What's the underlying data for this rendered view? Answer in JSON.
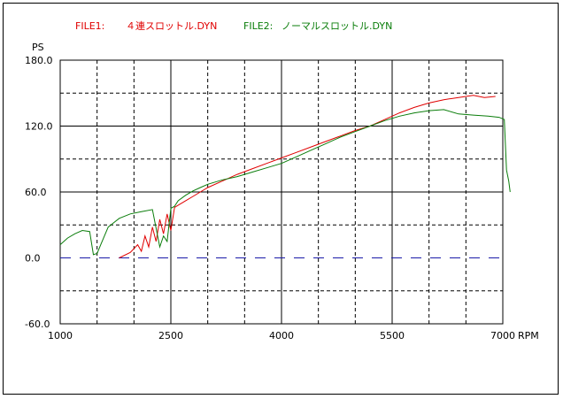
{
  "legend": {
    "file1_label": "FILE1:",
    "file1_name": "４連スロットル.DYN",
    "file2_label": "FILE2:",
    "file2_name": "ノーマルスロットル.DYN"
  },
  "colors": {
    "file1": "#e00000",
    "file2": "#0a7d0a",
    "zero_line": "#1a1aa8"
  },
  "chart_data": {
    "type": "line",
    "ylabel": "PS",
    "xlabel": "RPM",
    "xlim": [
      1000,
      7000
    ],
    "ylim": [
      -60,
      180
    ],
    "x_ticks": [
      "1000",
      "2500",
      "4000",
      "5500",
      "7000"
    ],
    "y_ticks": [
      "180.0",
      "120.0",
      "60.0",
      "0.0",
      "-60.0"
    ],
    "grid": true,
    "legend_position": "top",
    "series": [
      {
        "name": "FILE1:　４連スロットル.DYN",
        "color": "#e00000",
        "x": [
          1800,
          1950,
          2050,
          2100,
          2150,
          2200,
          2250,
          2300,
          2350,
          2400,
          2450,
          2500,
          2550,
          2600,
          2700,
          2800,
          2900,
          3000,
          3200,
          3400,
          3600,
          3800,
          4000,
          4200,
          4400,
          4600,
          4800,
          5000,
          5200,
          5400,
          5600,
          5800,
          6000,
          6200,
          6400,
          6600,
          6750,
          6900
        ],
        "y": [
          0,
          5,
          12,
          6,
          20,
          10,
          28,
          15,
          35,
          22,
          40,
          25,
          46,
          48,
          52,
          56,
          60,
          64,
          70,
          76,
          81,
          86,
          91,
          96,
          101,
          106,
          111,
          116,
          120,
          126,
          132,
          137,
          141,
          144,
          146,
          148,
          146,
          147
        ]
      },
      {
        "name": "FILE2:　ノーマルスロットル.DYN",
        "color": "#0a7d0a",
        "x": [
          1000,
          1100,
          1200,
          1300,
          1400,
          1450,
          1500,
          1550,
          1650,
          1800,
          1950,
          2100,
          2250,
          2350,
          2400,
          2450,
          2500,
          2550,
          2600,
          2700,
          2800,
          2900,
          3000,
          3200,
          3400,
          3600,
          3800,
          4000,
          4200,
          4400,
          4600,
          4800,
          5000,
          5200,
          5400,
          5600,
          5800,
          6000,
          6200,
          6400,
          6600,
          6800,
          6950,
          7020,
          7050,
          7080,
          7100
        ],
        "y": [
          12,
          18,
          22,
          25,
          24,
          3,
          4,
          12,
          28,
          36,
          40,
          42,
          44,
          10,
          20,
          15,
          45,
          47,
          52,
          57,
          61,
          64,
          67,
          71,
          74,
          78,
          82,
          86,
          92,
          98,
          104,
          110,
          115,
          120,
          125,
          129,
          132,
          134,
          135,
          131,
          130,
          129,
          128,
          126,
          80,
          70,
          60
        ]
      }
    ]
  }
}
